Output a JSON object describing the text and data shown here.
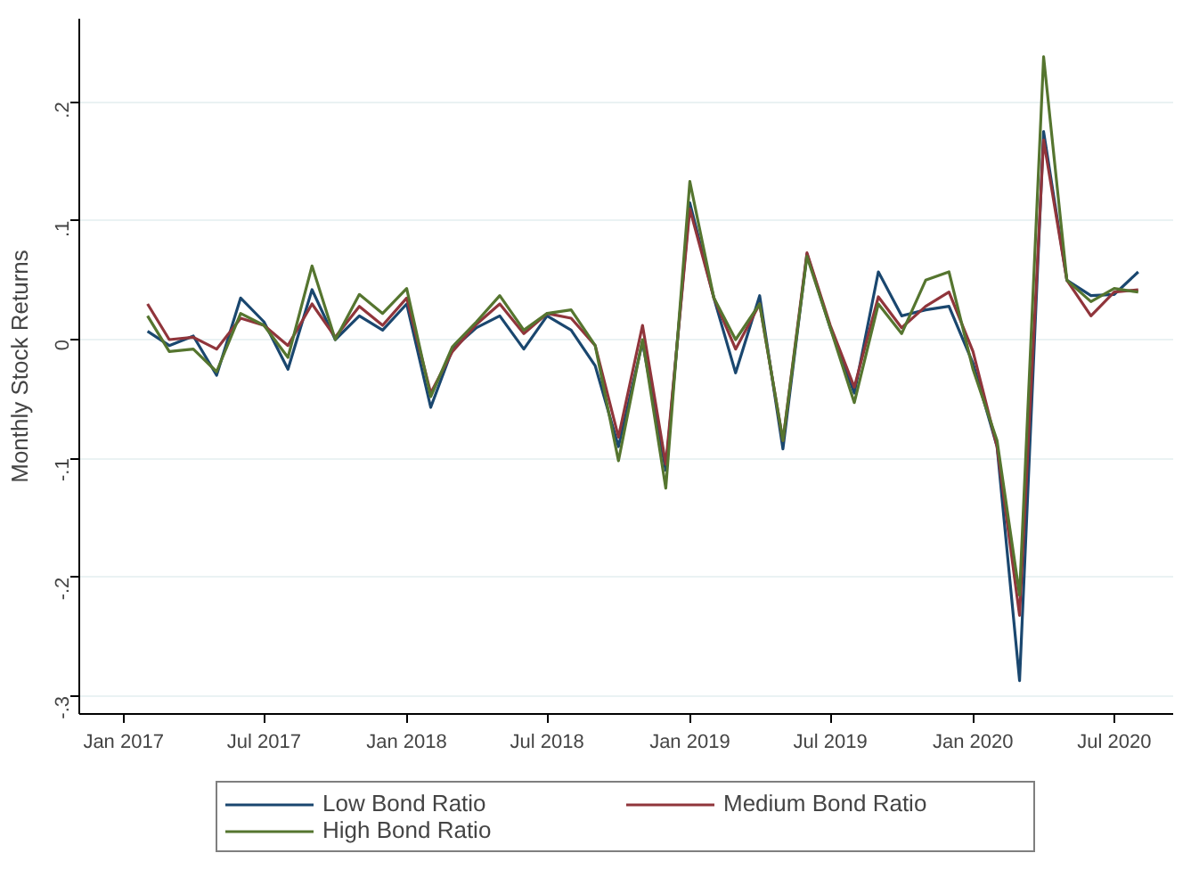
{
  "chart_data": {
    "type": "line",
    "ylabel": "Monthly Stock Returns",
    "x": [
      "2017-02",
      "2017-03",
      "2017-04",
      "2017-05",
      "2017-06",
      "2017-07",
      "2017-08",
      "2017-09",
      "2017-10",
      "2017-11",
      "2017-12",
      "2018-01",
      "2018-02",
      "2018-03",
      "2018-04",
      "2018-05",
      "2018-06",
      "2018-07",
      "2018-08",
      "2018-09",
      "2018-10",
      "2018-11",
      "2018-12",
      "2019-01",
      "2019-02",
      "2019-03",
      "2019-04",
      "2019-05",
      "2019-06",
      "2019-07",
      "2019-08",
      "2019-09",
      "2019-10",
      "2019-11",
      "2019-12",
      "2020-01",
      "2020-02",
      "2020-03",
      "2020-04",
      "2020-05",
      "2020-06",
      "2020-07",
      "2020-08"
    ],
    "series": [
      {
        "name": "Low Bond Ratio",
        "color": "#1a476f",
        "values": [
          0.007,
          -0.005,
          0.003,
          -0.03,
          0.035,
          0.015,
          -0.025,
          0.042,
          0,
          0.02,
          0.008,
          0.03,
          -0.057,
          -0.008,
          0.01,
          0.02,
          -0.008,
          0.02,
          0.008,
          -0.022,
          -0.09,
          -0.002,
          -0.11,
          0.115,
          0.035,
          -0.028,
          0.037,
          -0.092,
          0.072,
          0.01,
          -0.045,
          0.057,
          0.02,
          0.025,
          0.028,
          -0.02,
          -0.09,
          -0.287,
          0.175,
          0.05,
          0.037,
          0.038,
          0.057
        ]
      },
      {
        "name": "Medium Bond Ratio",
        "color": "#90353b",
        "values": [
          0.03,
          0,
          0.002,
          -0.008,
          0.018,
          0.012,
          -0.005,
          0.03,
          0.002,
          0.028,
          0.012,
          0.035,
          -0.045,
          -0.01,
          0.013,
          0.03,
          0.005,
          0.022,
          0.018,
          -0.005,
          -0.082,
          0.012,
          -0.105,
          0.11,
          0.035,
          -0.008,
          0.03,
          -0.085,
          0.073,
          0.012,
          -0.04,
          0.036,
          0.01,
          0.028,
          0.04,
          -0.01,
          -0.09,
          -0.232,
          0.168,
          0.05,
          0.02,
          0.04,
          0.042
        ]
      },
      {
        "name": "High Bond Ratio",
        "color": "#55752f",
        "values": [
          0.02,
          -0.01,
          -0.008,
          -0.027,
          0.022,
          0.012,
          -0.015,
          0.062,
          0,
          0.038,
          0.022,
          0.043,
          -0.048,
          -0.006,
          0.015,
          0.037,
          0.008,
          0.022,
          0.025,
          -0.005,
          -0.102,
          0,
          -0.125,
          0.133,
          0.035,
          0,
          0.03,
          -0.085,
          0.07,
          0.01,
          -0.053,
          0.03,
          0.005,
          0.05,
          0.057,
          -0.025,
          -0.085,
          -0.215,
          0.238,
          0.05,
          0.032,
          0.043,
          0.04
        ]
      }
    ],
    "xlim": [
      "2016-11-05",
      "2020-09-15"
    ],
    "xticks": [
      {
        "value": "2017-01",
        "label": "Jan 2017"
      },
      {
        "value": "2017-07",
        "label": "Jul 2017"
      },
      {
        "value": "2018-01",
        "label": "Jan 2018"
      },
      {
        "value": "2018-07",
        "label": "Jul 2018"
      },
      {
        "value": "2019-01",
        "label": "Jan 2019"
      },
      {
        "value": "2019-07",
        "label": "Jul 2019"
      },
      {
        "value": "2020-01",
        "label": "Jan 2020"
      },
      {
        "value": "2020-07",
        "label": "Jul 2020"
      }
    ],
    "ylim": [
      -0.315,
      0.27
    ],
    "yticks": [
      {
        "value": -0.3,
        "label": "-.3"
      },
      {
        "value": -0.2,
        "label": "-.2"
      },
      {
        "value": -0.1,
        "label": "-.1"
      },
      0,
      {
        "value": 0.1,
        "label": ".1"
      },
      {
        "value": 0.2,
        "label": ".2"
      }
    ],
    "grid": "y",
    "legend": "bottom",
    "line_style": "solid",
    "marker": "none"
  }
}
